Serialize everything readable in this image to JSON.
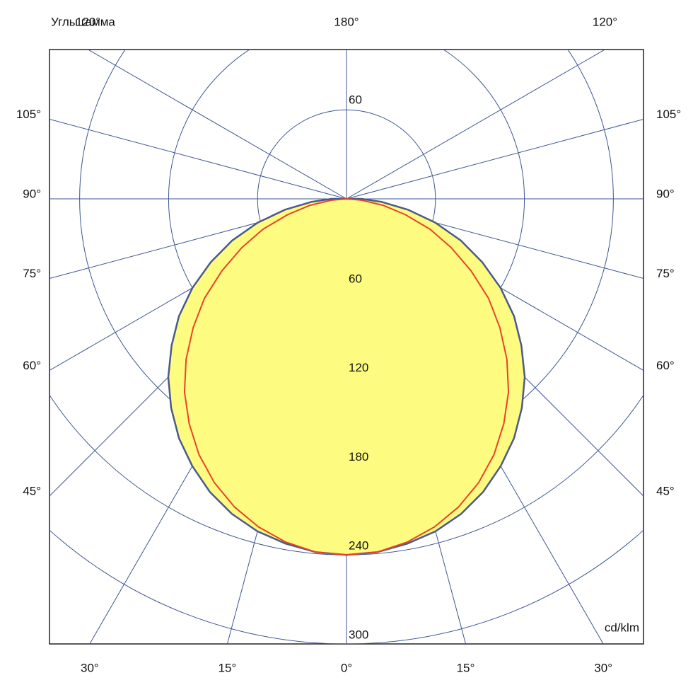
{
  "chart_data": {
    "type": "polar",
    "title": "Углы гамма",
    "unit_label": "cd/klm",
    "x": [
      -90,
      -85,
      -80,
      -75,
      -70,
      -65,
      -60,
      -55,
      -50,
      -45,
      -40,
      -35,
      -30,
      -25,
      -20,
      -15,
      -10,
      -5,
      0,
      5,
      10,
      15,
      20,
      25,
      30,
      35,
      40,
      45,
      50,
      55,
      60,
      65,
      70,
      75,
      80,
      85,
      90
    ],
    "series": [
      {
        "color": "#4a5a8c",
        "fill": "#fdfc80",
        "values": [
          10,
          24,
          42,
          62,
          82,
          101,
          120,
          138,
          154,
          170,
          184,
          197,
          208,
          218,
          226,
          232,
          236,
          239,
          240,
          239,
          236,
          232,
          226,
          218,
          208,
          197,
          184,
          170,
          154,
          138,
          120,
          101,
          82,
          62,
          42,
          24,
          10
        ]
      },
      {
        "color": "#e8432a",
        "values": [
          0,
          10,
          25,
          41,
          60,
          78,
          97,
          117,
          135,
          153,
          170,
          185,
          199,
          211,
          221,
          229,
          235,
          239,
          240,
          239,
          235,
          229,
          221,
          211,
          199,
          185,
          170,
          153,
          135,
          117,
          97,
          78,
          60,
          41,
          25,
          10,
          0
        ]
      }
    ],
    "rlim": [
      0,
      300
    ],
    "rticks": [
      60,
      120,
      180,
      240,
      300
    ],
    "angle_ticks": [
      {
        "value": 0,
        "label": "0°"
      },
      {
        "value": 15,
        "label": "15°"
      },
      {
        "value": 30,
        "label": "30°"
      },
      {
        "value": 45,
        "label": "45°"
      },
      {
        "value": 60,
        "label": "60°"
      },
      {
        "value": 75,
        "label": "75°"
      },
      {
        "value": 90,
        "label": "90°"
      },
      {
        "value": 105,
        "label": "105°"
      },
      {
        "value": 120,
        "label": "120°"
      },
      {
        "value": 180,
        "label": "180°"
      }
    ],
    "grid": true,
    "grid_color": "#3d5592"
  }
}
